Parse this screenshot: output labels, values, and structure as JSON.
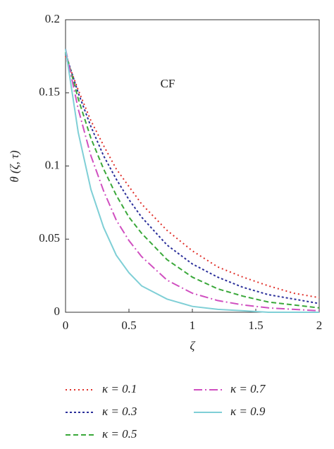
{
  "chart_data": {
    "type": "line",
    "y_label": "θ (ζ, τ)",
    "x_label": "ζ",
    "annotation": "CF",
    "x": [
      0,
      0.1,
      0.2,
      0.3,
      0.4,
      0.5,
      0.6,
      0.8,
      1.0,
      1.2,
      1.4,
      1.6,
      1.8,
      2.0
    ],
    "series": [
      {
        "name": "κ = 0.1",
        "color": "#e0302a",
        "dash": "2,4",
        "values": [
          0.175,
          0.152,
          0.131,
          0.114,
          0.098,
          0.086,
          0.074,
          0.056,
          0.042,
          0.031,
          0.024,
          0.018,
          0.013,
          0.01
        ]
      },
      {
        "name": "κ = 0.3",
        "color": "#2b2f9a",
        "dash": "3,3",
        "values": [
          0.177,
          0.15,
          0.127,
          0.107,
          0.091,
          0.077,
          0.065,
          0.046,
          0.033,
          0.024,
          0.017,
          0.012,
          0.009,
          0.006
        ]
      },
      {
        "name": "κ = 0.5",
        "color": "#3aa83a",
        "dash": "7,4",
        "values": [
          0.178,
          0.146,
          0.119,
          0.098,
          0.08,
          0.065,
          0.054,
          0.036,
          0.024,
          0.016,
          0.011,
          0.007,
          0.005,
          0.003
        ]
      },
      {
        "name": "κ = 0.7",
        "color": "#d04fc0",
        "dash": "12,4,2,4",
        "values": [
          0.18,
          0.139,
          0.107,
          0.083,
          0.063,
          0.049,
          0.038,
          0.022,
          0.013,
          0.008,
          0.005,
          0.003,
          0.002,
          0.001
        ]
      },
      {
        "name": "κ = 0.9",
        "color": "#7fcfd6",
        "dash": "",
        "values": [
          0.18,
          0.123,
          0.084,
          0.058,
          0.039,
          0.027,
          0.018,
          0.009,
          0.004,
          0.002,
          0.001,
          0,
          0,
          0
        ]
      }
    ],
    "xlim": [
      0,
      2
    ],
    "xticks": [
      0,
      0.5,
      1,
      1.5,
      2
    ],
    "ylim": [
      0,
      0.2
    ],
    "yticks": [
      0,
      0.05,
      0.1,
      0.15,
      0.2
    ]
  }
}
